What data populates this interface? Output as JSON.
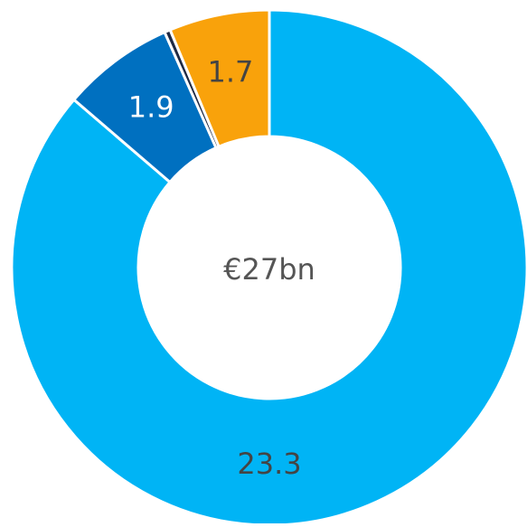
{
  "chart_data": {
    "type": "donut",
    "center_label": "€27bn",
    "values": [
      23.3,
      1.9,
      0.1,
      1.7
    ],
    "value_labels": [
      "23.3",
      "1.9",
      null,
      "1.7"
    ],
    "colors": [
      "#00b4f5",
      "#0070c0",
      "#1f2a44",
      "#f9a20b"
    ],
    "label_colors": [
      "#444444",
      "#ffffff",
      null,
      "#444444"
    ]
  }
}
